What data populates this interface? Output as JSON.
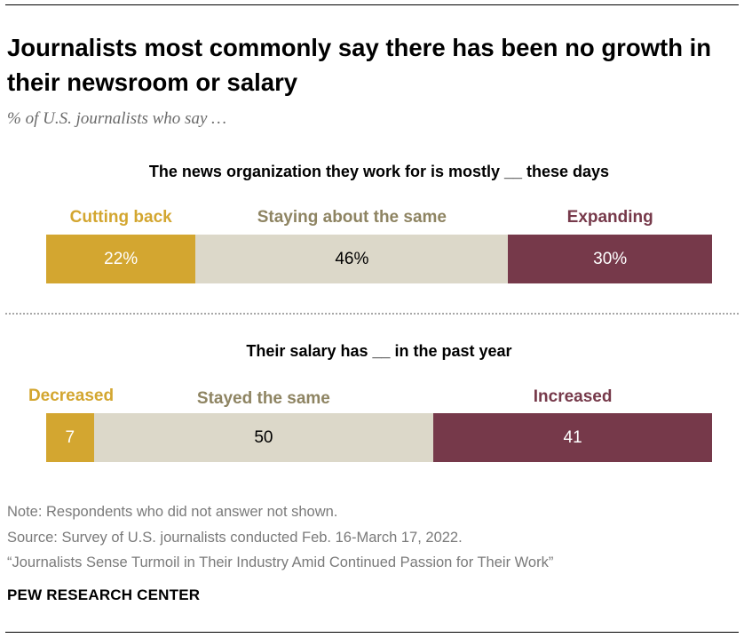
{
  "title": "Journalists most commonly say there has been no growth in their newsroom or salary",
  "subtitle": "% of U.S. journalists who say …",
  "colors": {
    "decrease": "#d3a630",
    "same": "#dcd8c9",
    "increase": "#76394a",
    "same_label": "#8e8462",
    "text_light": "#ffffff",
    "text_dark": "#000000"
  },
  "chart_data": [
    {
      "type": "bar",
      "stacked": true,
      "orientation": "horizontal",
      "title": "The news organization they work for is mostly __ these days",
      "categories": [
        "Cutting back",
        "Staying about the same",
        "Expanding"
      ],
      "values": [
        22,
        46,
        30
      ],
      "value_labels": [
        "22%",
        "46%",
        "30%"
      ]
    },
    {
      "type": "bar",
      "stacked": true,
      "orientation": "horizontal",
      "title": "Their salary has __ in the past year",
      "categories": [
        "Decreased",
        "Stayed the same",
        "Increased"
      ],
      "values": [
        7,
        50,
        41
      ],
      "value_labels": [
        "7",
        "50",
        "41"
      ]
    }
  ],
  "footer": {
    "note": "Note: Respondents who did not answer not shown.",
    "source": "Source: Survey of U.S. journalists conducted Feb. 16-March 17, 2022.",
    "report": "“Journalists Sense Turmoil in Their Industry Amid Continued Passion for Their Work”",
    "brand": "PEW RESEARCH CENTER"
  }
}
